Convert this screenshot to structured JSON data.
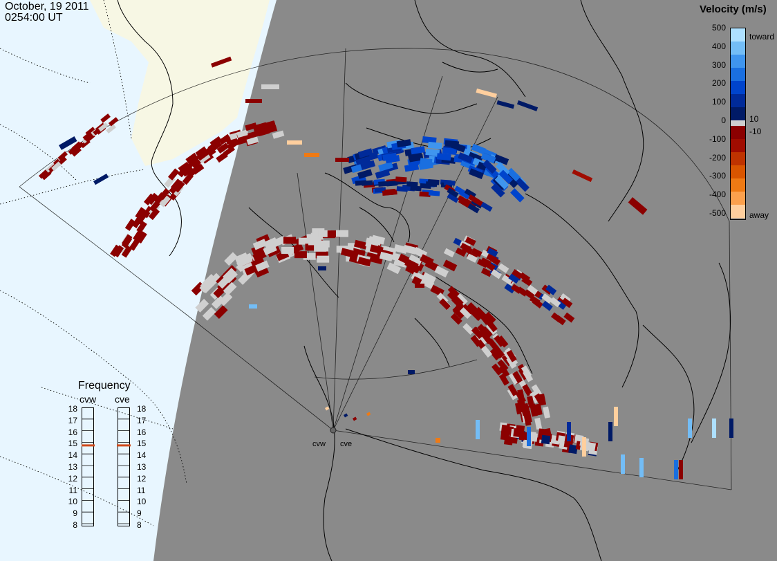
{
  "header": {
    "date": "October, 19 2011",
    "time": "0254:00 UT"
  },
  "colorbar": {
    "title": "Velocity (m/s)",
    "ticks": [
      "500",
      "400",
      "300",
      "200",
      "100",
      "0",
      "-100",
      "-200",
      "-300",
      "-400",
      "-500"
    ],
    "side_labels": {
      "toward": "toward",
      "away": "away",
      "plus10": "10",
      "minus10": "-10"
    },
    "colors": {
      "toward": [
        "#001a66",
        "#002a99",
        "#0044cc",
        "#1a6fe0",
        "#3f95ee",
        "#73bdf6",
        "#aee0ff"
      ],
      "away": [
        "#8b0000",
        "#a00c00",
        "#bf3300",
        "#d95500",
        "#ef7a14",
        "#fba04d",
        "#ffcf9e"
      ],
      "ground_scatter": "#cfcfcf"
    }
  },
  "frequency": {
    "title": "Frequency",
    "radars": [
      "cvw",
      "cve"
    ],
    "scale": [
      "18",
      "17",
      "16",
      "15",
      "14",
      "13",
      "12",
      "11",
      "10",
      "9",
      "8"
    ],
    "selected_mhz": [
      15,
      15
    ],
    "marker_color": "#d04a1a"
  },
  "map": {
    "radar_labels": [
      "cvw",
      "cve"
    ],
    "colors": {
      "ocean": "#e8f6ff",
      "land_day": "#f7f7e4",
      "night": "#8a8a8a",
      "coast": "#000000",
      "ground_scatter": "#cfcfcf"
    }
  }
}
